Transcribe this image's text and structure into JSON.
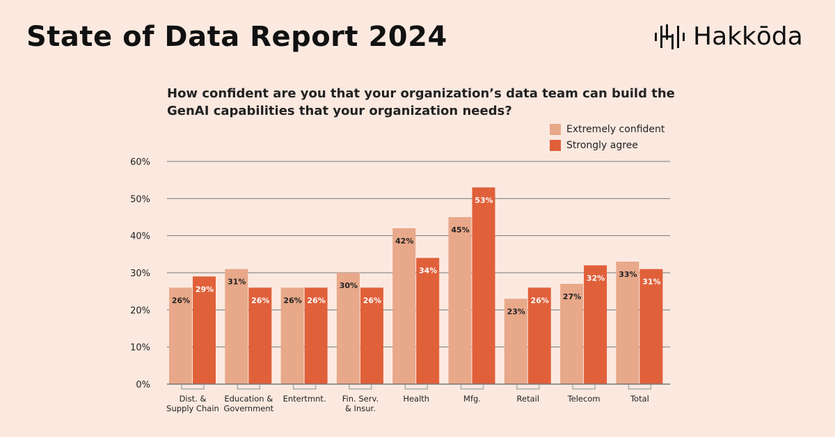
{
  "title": "State of Data Report 2024",
  "logo": {
    "text": "Hakkōda"
  },
  "question": "How confident are you that your organization’s data team can build the GenAI capabilities that your organization needs?",
  "colors": {
    "background": "#fbe9e0",
    "extremely_confident": "#e8a88a",
    "strongly_agree": "#e0603a"
  },
  "chart_data": {
    "type": "bar",
    "categories": [
      [
        "Dist. &",
        "Supply Chain"
      ],
      [
        "Education &",
        "Government"
      ],
      [
        "Entertmnt."
      ],
      [
        "Fin. Serv.",
        "& Insur."
      ],
      [
        "Health"
      ],
      [
        "Mfg."
      ],
      [
        "Retail"
      ],
      [
        "Telecom"
      ],
      [
        "Total"
      ]
    ],
    "series": [
      {
        "name": "Extremely confident",
        "values": [
          26,
          31,
          26,
          30,
          42,
          45,
          23,
          27,
          33
        ]
      },
      {
        "name": "Strongly agree",
        "values": [
          29,
          26,
          26,
          26,
          34,
          53,
          26,
          32,
          31
        ]
      }
    ],
    "data_labels": [
      [
        "26%",
        "31%",
        "26%",
        "30%",
        "42%",
        "45%",
        "23%",
        "27%",
        "33%"
      ],
      [
        "29%",
        "26%",
        "26%",
        "26%",
        "34%",
        "53%",
        "26%",
        "32%",
        "31%"
      ]
    ],
    "yticks": [
      "0%",
      "10%",
      "20%",
      "30%",
      "40%",
      "50%",
      "60%"
    ],
    "ylim": [
      0,
      60
    ],
    "grid": true,
    "legend": "top-right"
  }
}
